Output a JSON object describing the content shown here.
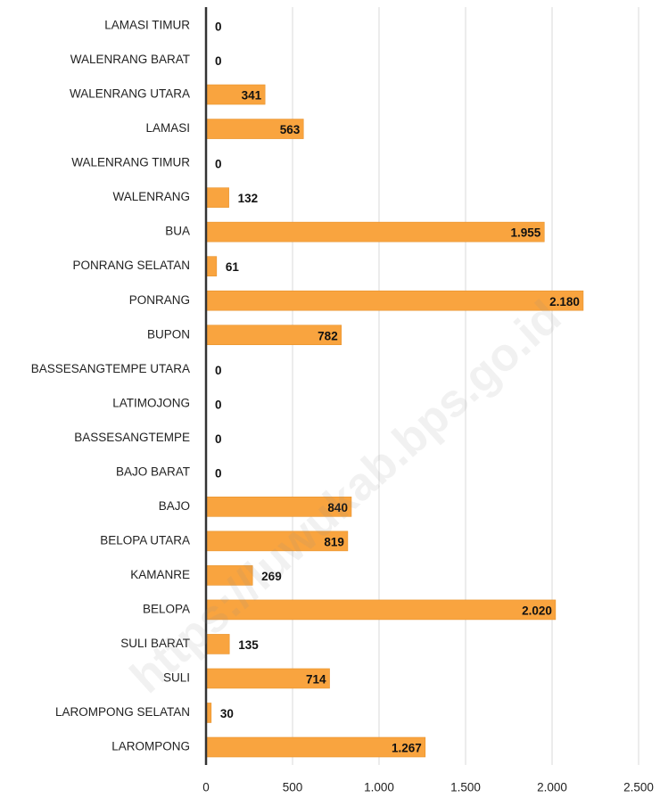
{
  "chart_data": {
    "type": "bar",
    "orientation": "horizontal",
    "categories": [
      "LAMASI TIMUR",
      "WALENRANG BARAT",
      "WALENRANG UTARA",
      "LAMASI",
      "WALENRANG TIMUR",
      "WALENRANG",
      "BUA",
      "PONRANG SELATAN",
      "PONRANG",
      "BUPON",
      "BASSESANGTEMPE UTARA",
      "LATIMOJONG",
      "BASSESANGTEMPE",
      "BAJO BARAT",
      "BAJO",
      "BELOPA UTARA",
      "KAMANRE",
      "BELOPA",
      "SULI BARAT",
      "SULI",
      "LAROMPONG SELATAN",
      "LAROMPONG"
    ],
    "values": [
      0,
      0,
      341,
      563,
      0,
      132,
      1955,
      61,
      2180,
      782,
      0,
      0,
      0,
      0,
      840,
      819,
      269,
      2020,
      135,
      714,
      30,
      1267
    ],
    "value_labels": [
      "0",
      "0",
      "341",
      "563",
      "0",
      "132",
      "1.955",
      "61",
      "2.180",
      "782",
      "0",
      "0",
      "0",
      "0",
      "840",
      "819",
      "269",
      "2.020",
      "135",
      "714",
      "30",
      "1.267"
    ],
    "color": "#f9a43f",
    "xlim": [
      0,
      2500
    ],
    "xticks": [
      0,
      500,
      {
        "value": 1000,
        "label": "1.000"
      },
      {
        "value": 1500,
        "label": "1.500"
      },
      {
        "value": 2000,
        "label": "2.000"
      },
      {
        "value": 2500,
        "label": "2.500"
      }
    ],
    "grid": true,
    "watermark": "https://luwukab.bps.go.id"
  }
}
